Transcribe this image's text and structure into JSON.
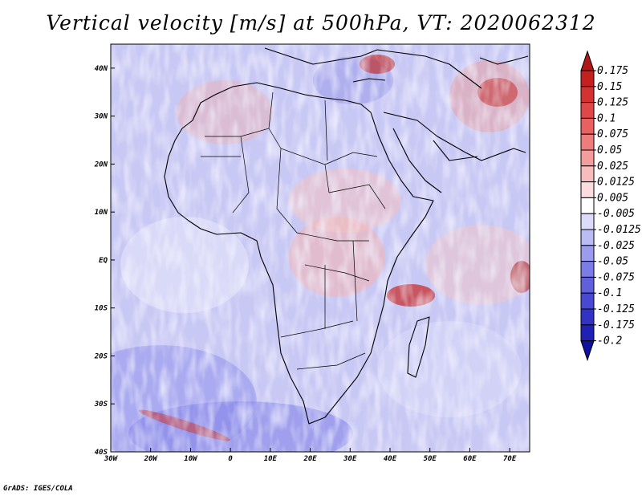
{
  "title": "Vertical velocity [m/s] at 500hPa, VT: 2020062312",
  "credit": "GrADS: IGES/COLA",
  "map": {
    "region": "Africa, Arabian Peninsula and surrounding oceans",
    "lon_range": [
      -30,
      75
    ],
    "lat_range": [
      -40,
      45
    ],
    "lon_ticks": [
      {
        "value": -30,
        "label": "30W"
      },
      {
        "value": -20,
        "label": "20W"
      },
      {
        "value": -10,
        "label": "10W"
      },
      {
        "value": 0,
        "label": "0"
      },
      {
        "value": 10,
        "label": "10E"
      },
      {
        "value": 20,
        "label": "20E"
      },
      {
        "value": 30,
        "label": "30E"
      },
      {
        "value": 40,
        "label": "40E"
      },
      {
        "value": 50,
        "label": "50E"
      },
      {
        "value": 60,
        "label": "60E"
      },
      {
        "value": 70,
        "label": "70E"
      }
    ],
    "lat_ticks": [
      {
        "value": 40,
        "label": "40N"
      },
      {
        "value": 30,
        "label": "30N"
      },
      {
        "value": 20,
        "label": "20N"
      },
      {
        "value": 10,
        "label": "10N"
      },
      {
        "value": 0,
        "label": "EQ"
      },
      {
        "value": -10,
        "label": "10S"
      },
      {
        "value": -20,
        "label": "20S"
      },
      {
        "value": -30,
        "label": "30S"
      },
      {
        "value": -40,
        "label": "40S"
      }
    ]
  },
  "colorbar": {
    "labels": [
      "0.175",
      "0.15",
      "0.125",
      "0.1",
      "0.075",
      "0.05",
      "0.025",
      "0.0125",
      "0.005",
      "-0.005",
      "-0.0125",
      "-0.025",
      "-0.05",
      "-0.075",
      "-0.1",
      "-0.125",
      "-0.175",
      "-0.2"
    ],
    "colors": [
      "#b01818",
      "#c42020",
      "#d43232",
      "#e04848",
      "#e86060",
      "#ef7c7c",
      "#f59c9c",
      "#f9bcbc",
      "#fcdcdc",
      "#ffffff",
      "#dcdcfa",
      "#bcbcf4",
      "#9c9cee",
      "#7c7ce6",
      "#6060dc",
      "#4848d2",
      "#3232c4",
      "#2020b4",
      "#1010a0"
    ]
  }
}
